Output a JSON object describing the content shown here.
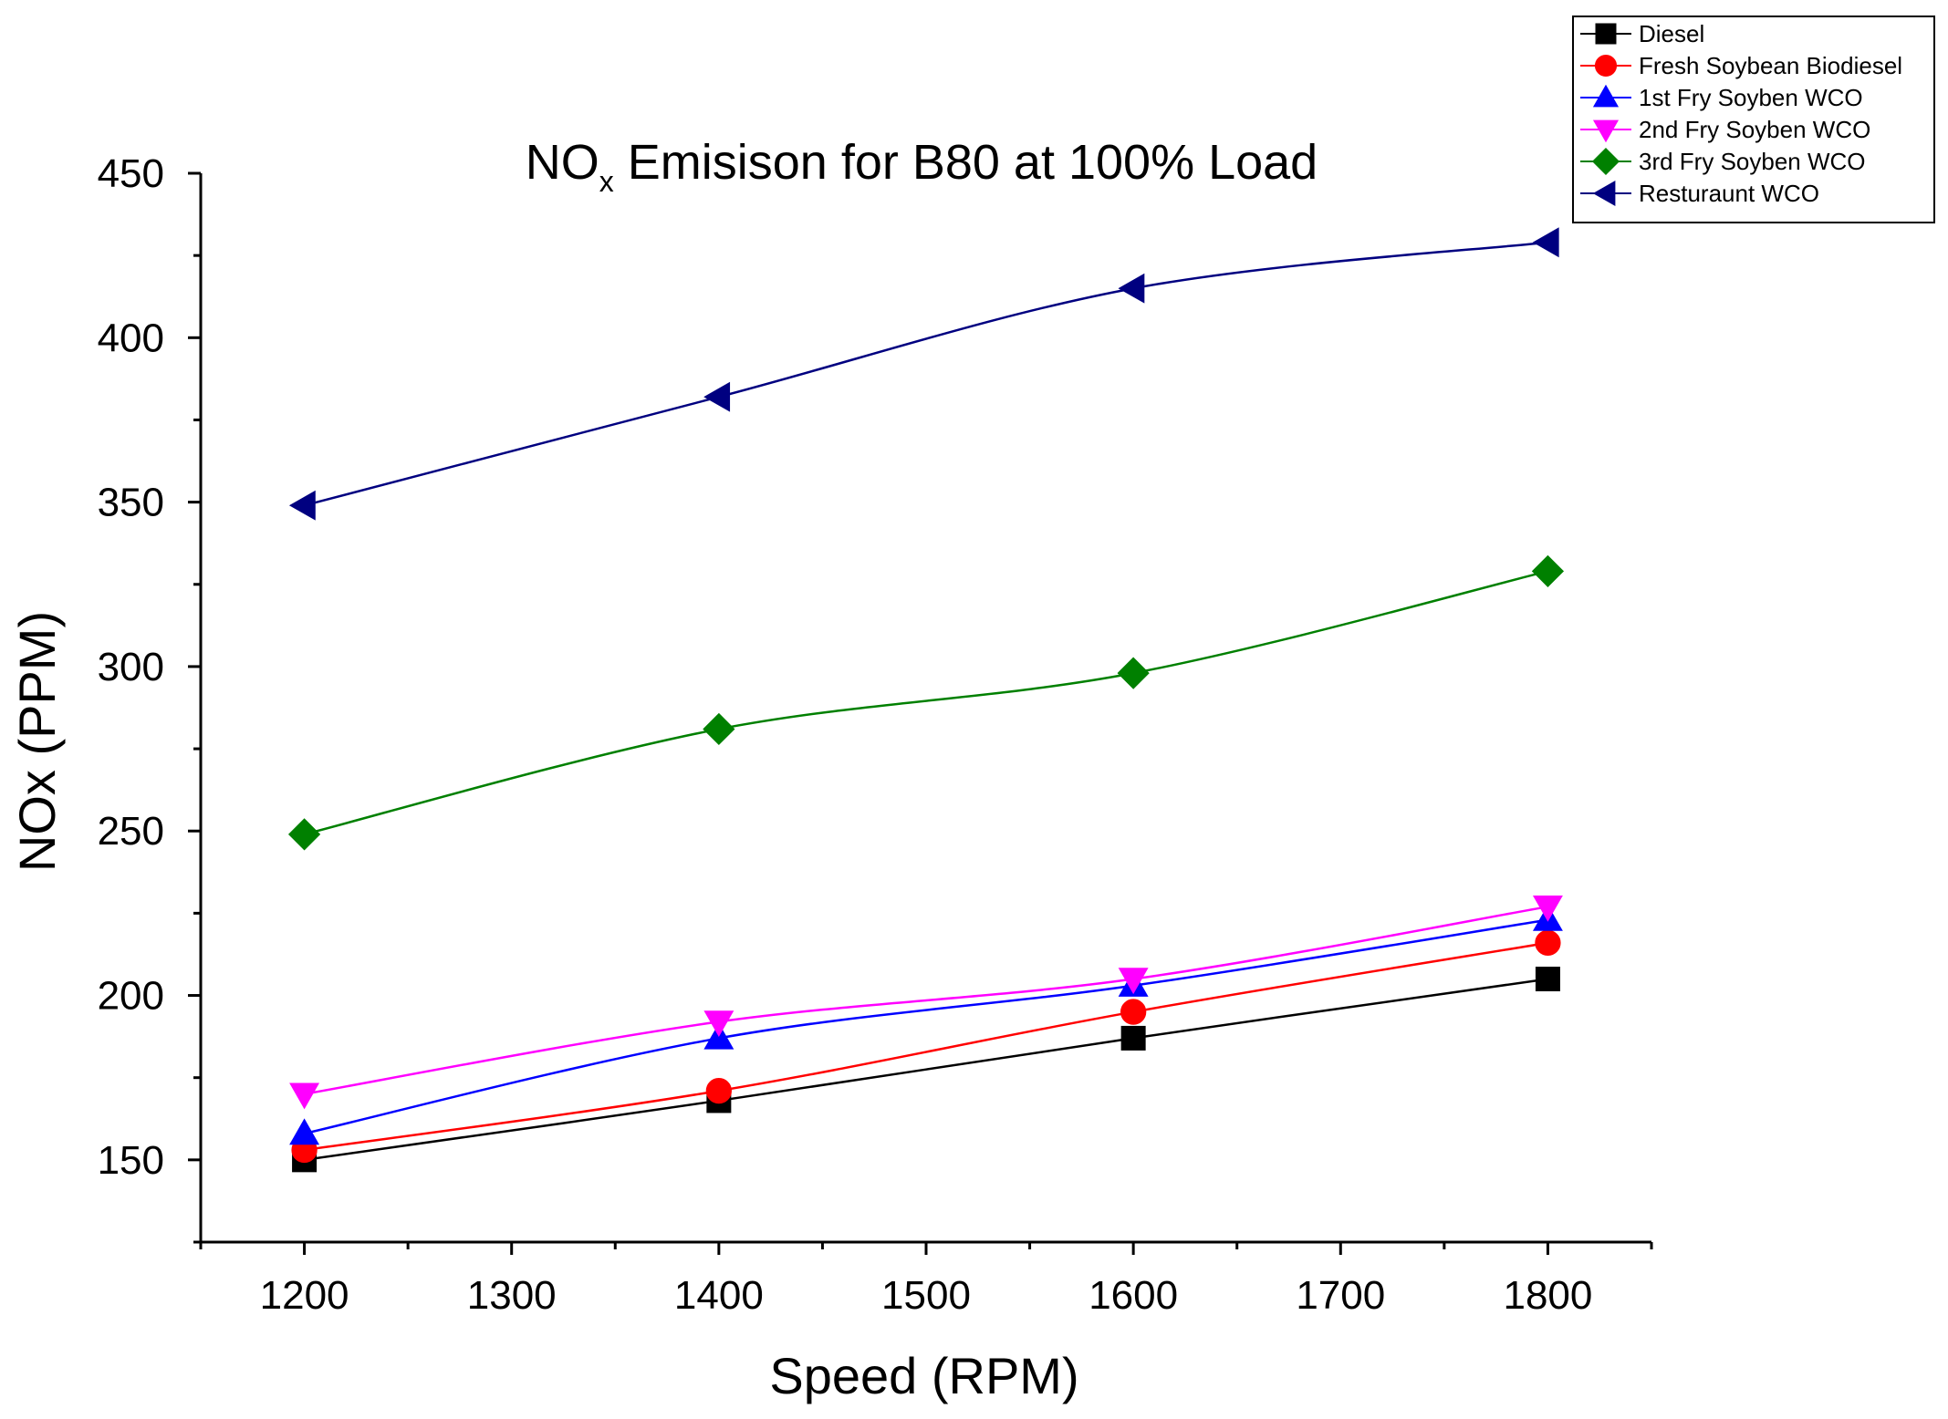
{
  "chart_data": {
    "type": "line",
    "title": {
      "main": "NO",
      "subscript": "x",
      "rest": " Emisison for B80 at 100% Load"
    },
    "xlabel": "Speed (RPM)",
    "ylabel": "NOx (PPM)",
    "xlim": [
      1150,
      1850
    ],
    "ylim": [
      125,
      450
    ],
    "xticks": [
      1200,
      1300,
      1400,
      1500,
      1600,
      1700,
      1800
    ],
    "yticks": [
      150,
      200,
      250,
      300,
      350,
      400,
      450
    ],
    "x": [
      1200,
      1400,
      1600,
      1800
    ],
    "legend_position": "top-right",
    "series": [
      {
        "name": "Diesel",
        "color": "#000000",
        "marker": "square",
        "values": [
          150,
          168,
          187,
          205
        ]
      },
      {
        "name": "Fresh Soybean Biodiesel",
        "color": "#ff0000",
        "marker": "circle",
        "values": [
          153,
          171,
          195,
          216
        ]
      },
      {
        "name": "1st Fry Soyben WCO",
        "color": "#0000ff",
        "marker": "triangle-up",
        "values": [
          158,
          187,
          203,
          223
        ]
      },
      {
        "name": "2nd Fry Soyben WCO",
        "color": "#ff00ff",
        "marker": "triangle-down",
        "values": [
          170,
          192,
          205,
          227
        ]
      },
      {
        "name": "3rd Fry Soyben WCO",
        "color": "#008000",
        "marker": "diamond",
        "values": [
          249,
          281,
          298,
          329
        ]
      },
      {
        "name": "Resturaunt WCO",
        "color": "#000080",
        "marker": "triangle-left",
        "values": [
          349,
          382,
          415,
          429
        ]
      }
    ]
  }
}
